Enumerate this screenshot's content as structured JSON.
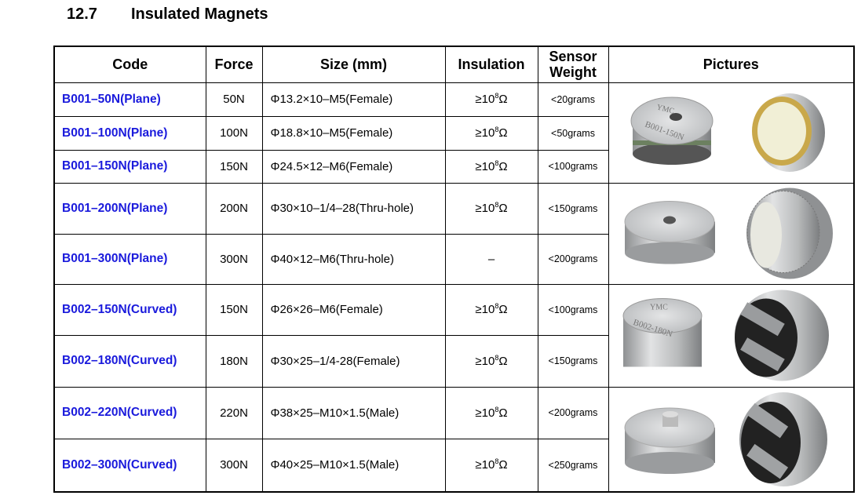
{
  "section": {
    "number": "12.7",
    "title": "Insulated Magnets"
  },
  "table": {
    "headers": {
      "code": "Code",
      "force": "Force",
      "size": "Size (mm)",
      "insulation": "Insulation",
      "weight": "Sensor Weight",
      "pictures": "Pictures"
    },
    "rows": [
      {
        "code": "B001–50N(Plane)",
        "force": "50N",
        "size": "Φ13.2×10–M5(Female)",
        "insulation": "≥10",
        "exp": "8",
        "unit": "Ω",
        "weight": "<20grams"
      },
      {
        "code": "B001–100N(Plane)",
        "force": "100N",
        "size": "Φ18.8×10–M5(Female)",
        "insulation": "≥10",
        "exp": "8",
        "unit": "Ω",
        "weight": "<50grams"
      },
      {
        "code": "B001–150N(Plane)",
        "force": "150N",
        "size": "Φ24.5×12–M6(Female)",
        "insulation": "≥10",
        "exp": "8",
        "unit": "Ω",
        "weight": "<100grams"
      },
      {
        "code": "B001–200N(Plane)",
        "force": "200N",
        "size": "Φ30×10–1/4–28(Thru-hole)",
        "insulation": "≥10",
        "exp": "8",
        "unit": "Ω",
        "weight": "<150grams"
      },
      {
        "code": "B001–300N(Plane)",
        "force": "300N",
        "size": "Φ40×12–M6(Thru-hole)",
        "insulation": "–",
        "exp": "",
        "unit": "",
        "weight": "<200grams"
      },
      {
        "code": "B002–150N(Curved)",
        "force": "150N",
        "size": "Φ26×26–M6(Female)",
        "insulation": "≥10",
        "exp": "8",
        "unit": "Ω",
        "weight": "<100grams"
      },
      {
        "code": "B002–180N(Curved)",
        "force": "180N",
        "size": "Φ30×25–1/4-28(Female)",
        "insulation": "≥10",
        "exp": "8",
        "unit": "Ω",
        "weight": "<150grams"
      },
      {
        "code": "B002–220N(Curved)",
        "force": "220N",
        "size": "Φ38×25–M10×1.5(Male)",
        "insulation": "≥10",
        "exp": "8",
        "unit": "Ω",
        "weight": "<200grams"
      },
      {
        "code": "B002–300N(Curved)",
        "force": "300N",
        "size": "Φ40×25–M10×1.5(Male)",
        "insulation": "≥10",
        "exp": "8",
        "unit": "Ω",
        "weight": "<250grams"
      }
    ],
    "pictures": [
      {
        "desc": "B001 plane magnet, hex top and insulated face",
        "engraving": [
          "YMC",
          "B001-150N"
        ]
      },
      {
        "desc": "B001 knurled round magnet",
        "engraving": []
      },
      {
        "desc": "B002 curved magnet",
        "engraving": [
          "YMC",
          "B002-180N"
        ]
      },
      {
        "desc": "B002 curved magnet with stud",
        "engraving": []
      }
    ]
  }
}
